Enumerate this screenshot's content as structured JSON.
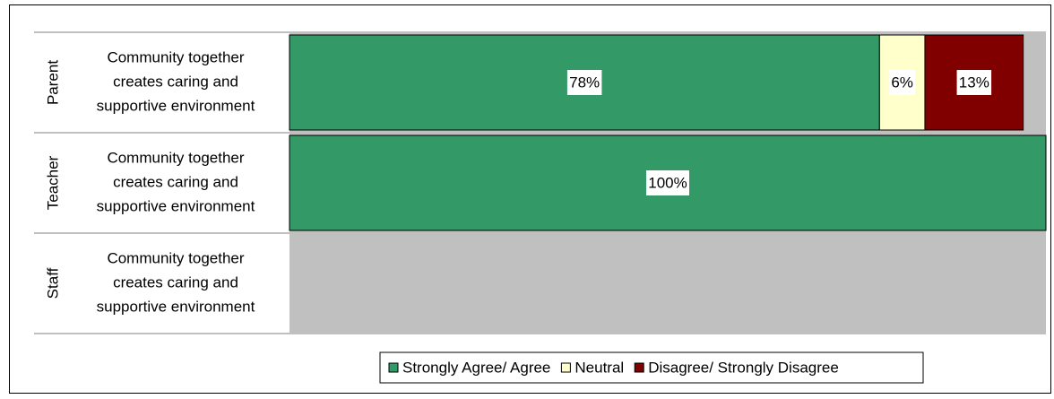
{
  "chart_data": {
    "type": "bar",
    "orientation": "horizontal",
    "stacked": true,
    "percent": true,
    "groups": [
      "Parent",
      "Teacher",
      "Staff"
    ],
    "categories": [
      "Community together creates caring and supportive environment",
      "Community together creates caring and supportive environment",
      "Community together creates caring and supportive environment"
    ],
    "series": [
      {
        "name": "Strongly Agree/ Agree",
        "values": [
          78,
          100,
          null
        ],
        "labels": [
          "78%",
          "100%",
          null
        ],
        "color": "#339966"
      },
      {
        "name": "Neutral",
        "values": [
          6,
          0,
          null
        ],
        "labels": [
          "6%",
          null,
          null
        ],
        "color": "#ffffcc"
      },
      {
        "name": "Disagree/ Strongly Disagree",
        "values": [
          13,
          0,
          null
        ],
        "labels": [
          "13%",
          null,
          null
        ],
        "color": "#800000"
      }
    ],
    "empty_color": "#c0c0c0",
    "xlim": [
      0,
      100
    ],
    "legend": "bottom"
  }
}
